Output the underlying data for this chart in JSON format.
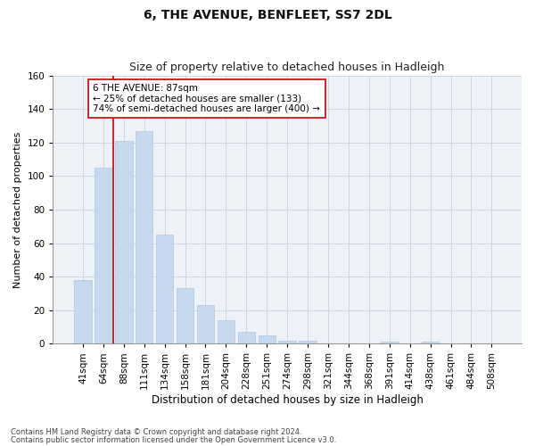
{
  "title": "6, THE AVENUE, BENFLEET, SS7 2DL",
  "subtitle": "Size of property relative to detached houses in Hadleigh",
  "xlabel": "Distribution of detached houses by size in Hadleigh",
  "ylabel": "Number of detached properties",
  "categories": [
    "41sqm",
    "64sqm",
    "88sqm",
    "111sqm",
    "134sqm",
    "158sqm",
    "181sqm",
    "204sqm",
    "228sqm",
    "251sqm",
    "274sqm",
    "298sqm",
    "321sqm",
    "344sqm",
    "368sqm",
    "391sqm",
    "414sqm",
    "438sqm",
    "461sqm",
    "484sqm",
    "508sqm"
  ],
  "values": [
    38,
    105,
    121,
    127,
    65,
    33,
    23,
    14,
    7,
    5,
    2,
    2,
    0,
    0,
    0,
    1,
    0,
    1,
    0,
    0,
    0
  ],
  "bar_color": "#c6d9ee",
  "bar_edge_color": "#b0c8e0",
  "bar_width": 0.85,
  "ylim": [
    0,
    160
  ],
  "yticks": [
    0,
    20,
    40,
    60,
    80,
    100,
    120,
    140,
    160
  ],
  "vline_color": "#cc0000",
  "vline_x_index": 2,
  "annotation_text": "6 THE AVENUE: 87sqm\n← 25% of detached houses are smaller (133)\n74% of semi-detached houses are larger (400) →",
  "annotation_box_color": "#ffffff",
  "annotation_box_edge": "#cc0000",
  "footnote1": "Contains HM Land Registry data © Crown copyright and database right 2024.",
  "footnote2": "Contains public sector information licensed under the Open Government Licence v3.0.",
  "background_color": "#eef2f7",
  "grid_color": "#c8d4e0",
  "title_fontsize": 10,
  "subtitle_fontsize": 9,
  "xlabel_fontsize": 8.5,
  "ylabel_fontsize": 8,
  "tick_fontsize": 7.5,
  "annotation_fontsize": 7.5,
  "footnote_fontsize": 6
}
